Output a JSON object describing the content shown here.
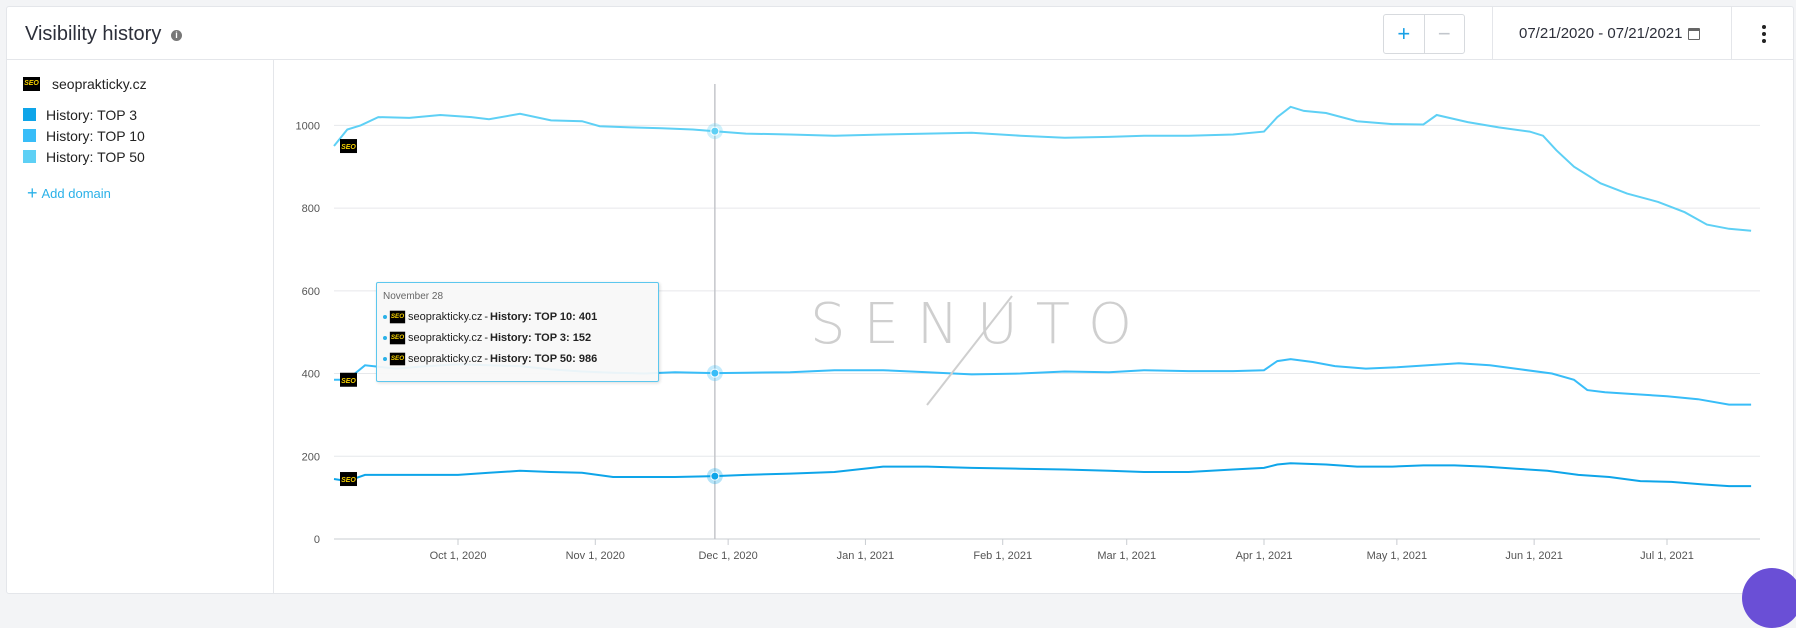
{
  "header": {
    "title": "Visibility history",
    "info_icon": "info-icon",
    "zoom_in_label": "+",
    "zoom_out_label": "−",
    "date_range": "07/21/2020 - 07/21/2021"
  },
  "sidebar": {
    "domain": "seoprakticky.cz",
    "logo_text": "SEO",
    "legend": [
      {
        "label": "History: TOP 3",
        "color": "#0ea5e9"
      },
      {
        "label": "History: TOP 10",
        "color": "#38bdf8"
      },
      {
        "label": "History: TOP 50",
        "color": "#5ed0f5"
      }
    ],
    "add_domain": "Add domain"
  },
  "tooltip": {
    "date": "November 28",
    "rows": [
      {
        "domain": "seoprakticky.cz",
        "sep": " - ",
        "series": "History: TOP 10: 401"
      },
      {
        "domain": "seoprakticky.cz",
        "sep": " - ",
        "series": "History: TOP 3: 152"
      },
      {
        "domain": "seoprakticky.cz",
        "sep": " - ",
        "series": "History: TOP 50: 986"
      }
    ]
  },
  "watermark": "SENUTO",
  "chart_data": {
    "type": "line",
    "title": "",
    "xlabel": "",
    "ylabel": "",
    "ylim": [
      0,
      1100
    ],
    "yticks": [
      0,
      200,
      400,
      600,
      800,
      1000
    ],
    "x_ticks": [
      "Oct 1, 2020",
      "Nov 1, 2020",
      "Dec 1, 2020",
      "Jan 1, 2021",
      "Feb 1, 2021",
      "Mar 1, 2021",
      "Apr 1, 2021",
      "May 1, 2021",
      "Jun 1, 2021",
      "Jul 1, 2021"
    ],
    "x_tick_dates": [
      "2020-10-01",
      "2020-11-01",
      "2020-12-01",
      "2021-01-01",
      "2021-02-01",
      "2021-03-01",
      "2021-04-01",
      "2021-05-01",
      "2021-06-01",
      "2021-07-01"
    ],
    "x_range": [
      "2020-09-03",
      "2021-07-22"
    ],
    "hover_date": "2020-11-28",
    "grid": true,
    "legend": "left-sidebar",
    "series": [
      {
        "name": "History: TOP 50",
        "color": "#5ed0f5",
        "x": [
          "2020-09-03",
          "2020-09-06",
          "2020-09-09",
          "2020-09-13",
          "2020-09-20",
          "2020-09-27",
          "2020-10-04",
          "2020-10-08",
          "2020-10-15",
          "2020-10-22",
          "2020-10-29",
          "2020-11-02",
          "2020-11-09",
          "2020-11-16",
          "2020-11-23",
          "2020-11-28",
          "2020-12-05",
          "2020-12-15",
          "2020-12-25",
          "2021-01-05",
          "2021-01-15",
          "2021-01-25",
          "2021-02-05",
          "2021-02-15",
          "2021-02-25",
          "2021-03-05",
          "2021-03-15",
          "2021-03-25",
          "2021-04-01",
          "2021-04-04",
          "2021-04-07",
          "2021-04-10",
          "2021-04-15",
          "2021-04-22",
          "2021-04-30",
          "2021-05-07",
          "2021-05-10",
          "2021-05-17",
          "2021-05-24",
          "2021-05-31",
          "2021-06-03",
          "2021-06-06",
          "2021-06-10",
          "2021-06-16",
          "2021-06-22",
          "2021-06-29",
          "2021-07-05",
          "2021-07-10",
          "2021-07-15",
          "2021-07-20"
        ],
        "y": [
          950,
          990,
          1000,
          1020,
          1018,
          1025,
          1020,
          1015,
          1028,
          1012,
          1010,
          998,
          995,
          993,
          990,
          986,
          980,
          978,
          975,
          978,
          980,
          982,
          975,
          970,
          972,
          975,
          975,
          978,
          985,
          1020,
          1045,
          1035,
          1030,
          1010,
          1003,
          1002,
          1025,
          1008,
          995,
          985,
          975,
          940,
          900,
          860,
          835,
          815,
          790,
          760,
          750,
          745
        ]
      },
      {
        "name": "History: TOP 10",
        "color": "#38bdf8",
        "x": [
          "2020-09-03",
          "2020-09-06",
          "2020-09-10",
          "2020-09-17",
          "2020-09-24",
          "2020-10-01",
          "2020-10-08",
          "2020-10-15",
          "2020-10-22",
          "2020-10-29",
          "2020-11-05",
          "2020-11-12",
          "2020-11-19",
          "2020-11-28",
          "2020-12-05",
          "2020-12-15",
          "2020-12-25",
          "2021-01-05",
          "2021-01-15",
          "2021-01-25",
          "2021-02-05",
          "2021-02-15",
          "2021-02-25",
          "2021-03-05",
          "2021-03-15",
          "2021-03-25",
          "2021-04-01",
          "2021-04-04",
          "2021-04-07",
          "2021-04-12",
          "2021-04-17",
          "2021-04-24",
          "2021-05-01",
          "2021-05-08",
          "2021-05-15",
          "2021-05-22",
          "2021-05-29",
          "2021-06-05",
          "2021-06-10",
          "2021-06-13",
          "2021-06-17",
          "2021-06-24",
          "2021-07-01",
          "2021-07-08",
          "2021-07-15",
          "2021-07-20"
        ],
        "y": [
          385,
          385,
          420,
          412,
          418,
          422,
          420,
          418,
          410,
          405,
          402,
          400,
          403,
          401,
          402,
          403,
          408,
          408,
          403,
          398,
          400,
          405,
          403,
          408,
          406,
          406,
          408,
          430,
          435,
          428,
          418,
          412,
          415,
          420,
          425,
          420,
          410,
          400,
          385,
          360,
          355,
          350,
          345,
          338,
          325,
          325
        ]
      },
      {
        "name": "History: TOP 3",
        "color": "#0ea5e9",
        "x": [
          "2020-09-03",
          "2020-09-06",
          "2020-09-10",
          "2020-09-17",
          "2020-09-24",
          "2020-10-01",
          "2020-10-08",
          "2020-10-15",
          "2020-10-22",
          "2020-10-29",
          "2020-11-05",
          "2020-11-12",
          "2020-11-19",
          "2020-11-28",
          "2020-12-05",
          "2020-12-15",
          "2020-12-25",
          "2021-01-05",
          "2021-01-15",
          "2021-01-25",
          "2021-02-05",
          "2021-02-15",
          "2021-02-25",
          "2021-03-05",
          "2021-03-15",
          "2021-03-25",
          "2021-04-01",
          "2021-04-04",
          "2021-04-07",
          "2021-04-15",
          "2021-04-22",
          "2021-04-30",
          "2021-05-07",
          "2021-05-14",
          "2021-05-21",
          "2021-05-28",
          "2021-06-04",
          "2021-06-11",
          "2021-06-18",
          "2021-06-25",
          "2021-07-02",
          "2021-07-09",
          "2021-07-15",
          "2021-07-20"
        ],
        "y": [
          145,
          140,
          155,
          155,
          155,
          155,
          160,
          165,
          162,
          160,
          150,
          150,
          150,
          152,
          155,
          158,
          162,
          175,
          175,
          172,
          170,
          168,
          165,
          162,
          162,
          168,
          172,
          180,
          183,
          180,
          175,
          175,
          178,
          178,
          175,
          170,
          165,
          155,
          150,
          140,
          138,
          132,
          128,
          128
        ]
      }
    ]
  }
}
